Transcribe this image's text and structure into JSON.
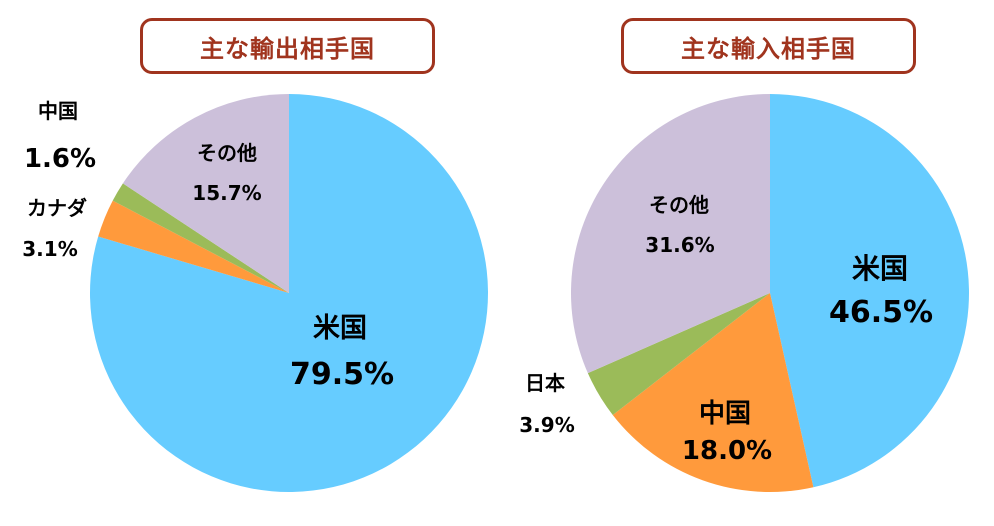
{
  "chart_data": [
    {
      "type": "pie",
      "title": "主な輸出相手国",
      "colors": {
        "title": "#a0341e"
      },
      "slices": [
        {
          "label": "米国",
          "value": 79.5,
          "display": "79.5%",
          "color": "#66ccff"
        },
        {
          "label": "カナダ",
          "value": 3.1,
          "display": "3.1%",
          "color": "#ff9a3c"
        },
        {
          "label": "中国",
          "value": 1.6,
          "display": "1.6%",
          "color": "#9bbb59"
        },
        {
          "label": "その他",
          "value": 15.7,
          "display": "15.7%",
          "color": "#ccc0da"
        }
      ]
    },
    {
      "type": "pie",
      "title": "主な輸入相手国",
      "colors": {
        "title": "#a0341e"
      },
      "slices": [
        {
          "label": "米国",
          "value": 46.5,
          "display": "46.5%",
          "color": "#66ccff"
        },
        {
          "label": "中国",
          "value": 18.0,
          "display": "18.0%",
          "color": "#ff9a3c"
        },
        {
          "label": "日本",
          "value": 3.9,
          "display": "3.9%",
          "color": "#9bbb59"
        },
        {
          "label": "その他",
          "value": 31.6,
          "display": "31.6%",
          "color": "#ccc0da"
        }
      ]
    }
  ]
}
